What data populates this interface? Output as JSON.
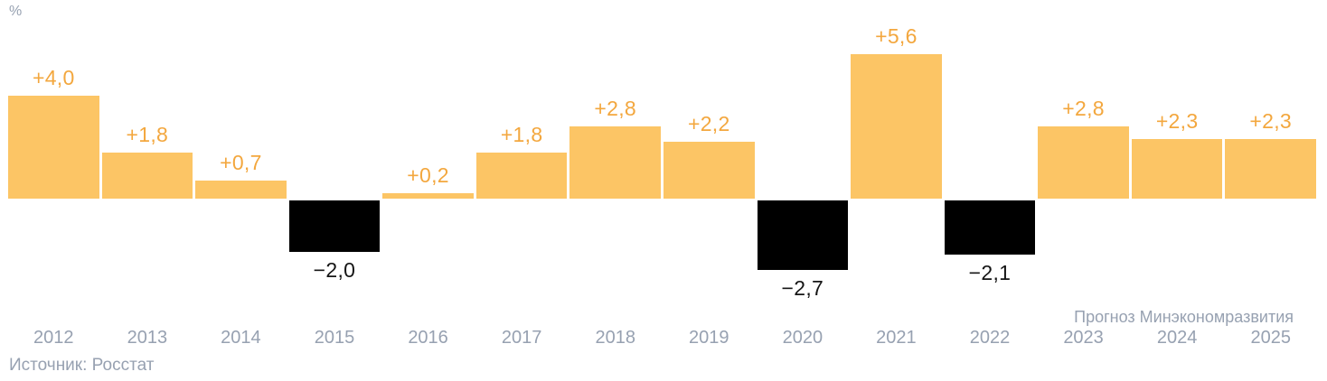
{
  "unit_label": "%",
  "forecast_note": "Прогноз Минэкономразвития",
  "source_note": "Источник: Росстат",
  "chart_data": {
    "type": "bar",
    "title": "",
    "xlabel": "",
    "ylabel": "%",
    "grid": false,
    "legend": "none",
    "ylim": [
      -3.5,
      6.5
    ],
    "categories": [
      "2012",
      "2013",
      "2014",
      "2015",
      "2016",
      "2017",
      "2018",
      "2019",
      "2020",
      "2021",
      "2022",
      "2023",
      "2024",
      "2025"
    ],
    "values": [
      4.0,
      1.8,
      0.7,
      -2.0,
      0.2,
      1.8,
      2.8,
      2.2,
      -2.7,
      5.6,
      -2.1,
      2.8,
      2.3,
      2.3
    ],
    "bar_labels": [
      "+4,0",
      "+1,8",
      "+0,7",
      "−2,0",
      "+0,2",
      "+1,8",
      "+2,8",
      "+2,2",
      "−2,7",
      "+5,6",
      "−2,1",
      "+2,8",
      "+2,3",
      "+2,3"
    ],
    "forecast_categories": [
      "2023",
      "2024",
      "2025"
    ],
    "forecast_note": "Прогноз Минэкономразвития",
    "source": "Источник: Росстат",
    "colors": {
      "positive_bar": "#FCC565",
      "negative_bar": "#000000",
      "positive_label": "#F3A73E",
      "negative_label": "#151515",
      "axis_text": "#97A1B1",
      "background": "#FFFFFF"
    }
  }
}
